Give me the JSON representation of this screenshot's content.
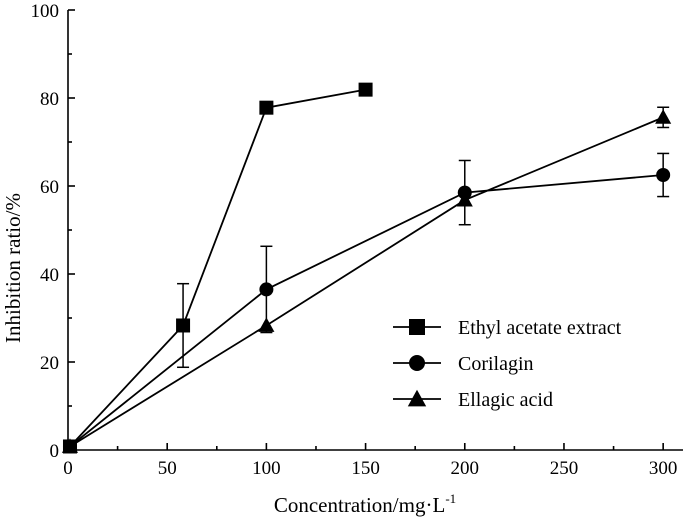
{
  "chart_data": {
    "type": "line",
    "title": "",
    "xlabel": "Concentration/mg·L",
    "xlabel_superscript": "-1",
    "ylabel": "Inhibition ratio/%",
    "xlim": [
      0,
      310
    ],
    "ylim": [
      0,
      100
    ],
    "xticks": [
      0,
      50,
      100,
      150,
      200,
      250,
      300
    ],
    "yticks": [
      0,
      20,
      40,
      60,
      80,
      100
    ],
    "legend_position": "lower-right",
    "grid": false,
    "series": [
      {
        "name": "Ethyl acetate extract",
        "marker": "square",
        "x": [
          1,
          58,
          100,
          150
        ],
        "y": [
          0.8,
          28.3,
          77.8,
          81.9
        ],
        "err": [
          0,
          9.5,
          0,
          0
        ]
      },
      {
        "name": "Corilagin",
        "marker": "circle",
        "x": [
          1,
          100,
          200,
          300
        ],
        "y": [
          0.8,
          36.5,
          58.5,
          62.5
        ],
        "err": [
          0,
          9.8,
          7.3,
          4.9
        ]
      },
      {
        "name": "Ellagic acid",
        "marker": "triangle",
        "x": [
          1,
          100,
          200,
          300
        ],
        "y": [
          0.8,
          28.3,
          56.8,
          75.6
        ],
        "err": [
          0,
          0,
          0,
          2.3
        ]
      }
    ]
  }
}
